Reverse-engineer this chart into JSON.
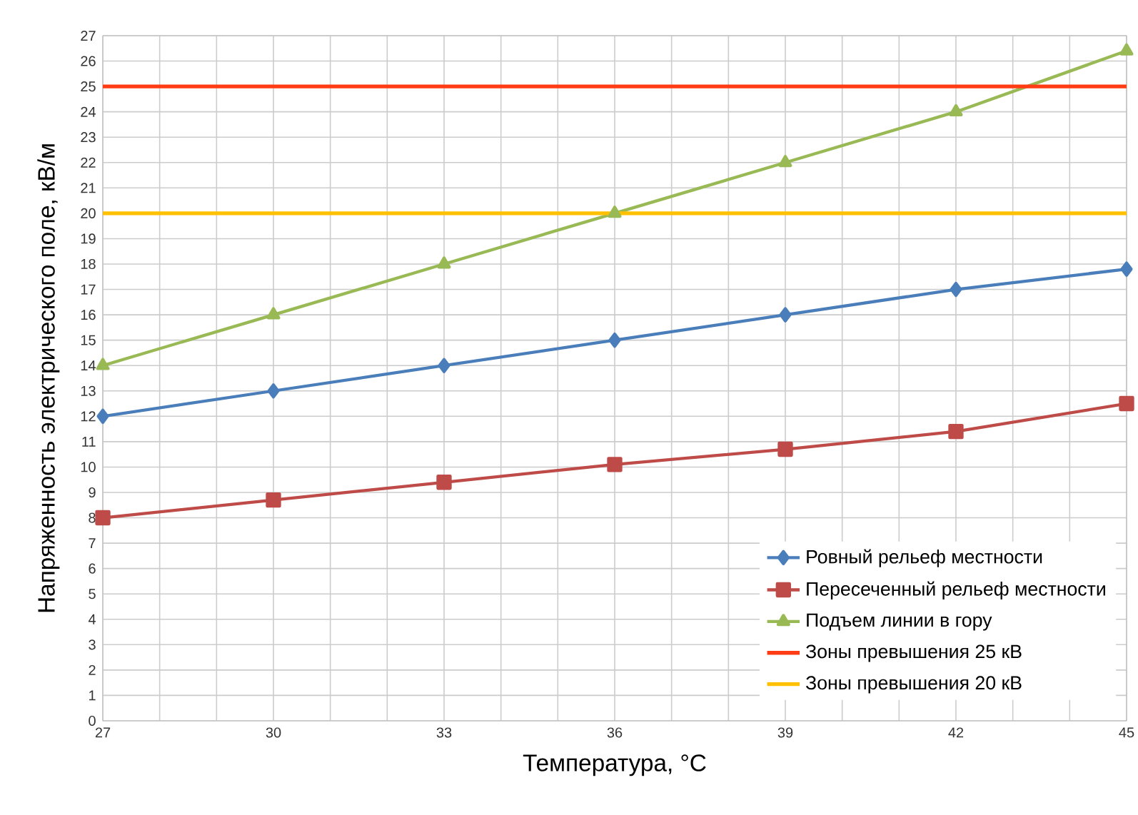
{
  "chart_data": {
    "type": "line",
    "xlabel": "Температура, °C",
    "ylabel": "Напряженность электрического поле, кВ/м",
    "x": [
      27,
      30,
      33,
      36,
      39,
      42,
      45
    ],
    "xlim": [
      27,
      45
    ],
    "xticks": [
      27,
      {
        "value": 28,
        "label": null
      },
      {
        "value": 29,
        "label": null
      },
      30,
      {
        "value": 31,
        "label": null
      },
      {
        "value": 32,
        "label": null
      },
      33,
      {
        "value": 34,
        "label": null
      },
      {
        "value": 35,
        "label": null
      },
      36,
      {
        "value": 37,
        "label": null
      },
      {
        "value": 38,
        "label": null
      },
      39,
      {
        "value": 40,
        "label": null
      },
      {
        "value": 41,
        "label": null
      },
      42,
      {
        "value": 43,
        "label": null
      },
      {
        "value": 44,
        "label": null
      },
      45
    ],
    "ylim": [
      0,
      27
    ],
    "yticks": [
      0,
      1,
      2,
      3,
      4,
      5,
      6,
      7,
      8,
      9,
      10,
      11,
      12,
      13,
      14,
      15,
      16,
      17,
      18,
      19,
      20,
      21,
      22,
      23,
      24,
      25,
      26,
      27
    ],
    "grid": true,
    "legend": "bottom right",
    "series": [
      {
        "name": "Ровный рельеф местности",
        "color": "#4a7ebb",
        "marker": "diamond",
        "values": [
          12,
          13,
          14,
          15,
          16,
          17,
          17.8
        ]
      },
      {
        "name": "Пересеченный рельеф местности",
        "color": "#be4b48",
        "marker": "square",
        "values": [
          8,
          8.7,
          9.4,
          10.1,
          10.7,
          11.4,
          12.5
        ]
      },
      {
        "name": "Подъем линии в гору",
        "color": "#98b954",
        "marker": "triangle",
        "values": [
          14,
          16,
          18,
          20,
          22,
          24,
          26.4
        ]
      }
    ],
    "ref_lines": [
      {
        "axis": "y",
        "value": 25,
        "label": "Зоны превышения 25 кВ",
        "color": "#ff3c14"
      },
      {
        "axis": "y",
        "value": 20,
        "label": "Зоны превышения 20 кВ",
        "color": "#ffc000"
      }
    ]
  }
}
